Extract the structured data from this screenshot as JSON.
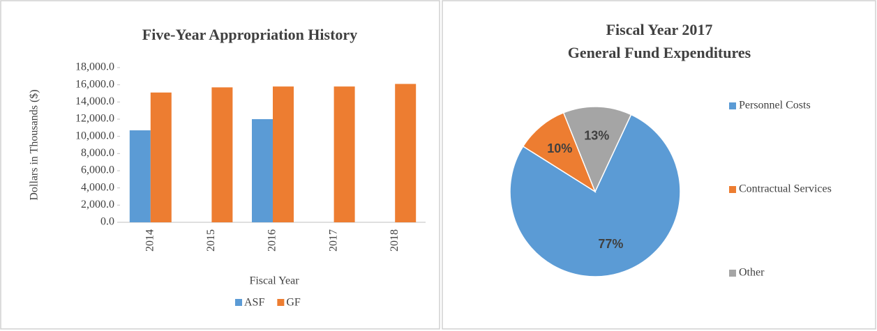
{
  "chart_data": [
    {
      "type": "bar",
      "title": "Five-Year Appropriation  History",
      "x_label": "Fiscal Year",
      "y_label": "Dollars in Thousands  ($)",
      "categories": [
        "2014",
        "2015",
        "2016",
        "2017",
        "2018"
      ],
      "series": [
        {
          "name": "ASF",
          "color": "#5b9bd5",
          "values": [
            10700,
            null,
            12000,
            null,
            null
          ]
        },
        {
          "name": "GF",
          "color": "#ed7d31",
          "values": [
            15100,
            15700,
            15800,
            15800,
            16100
          ]
        }
      ],
      "ylim": [
        0,
        18000
      ],
      "yticks": [
        {
          "value": 0,
          "label": "0.0"
        },
        {
          "value": 2000,
          "label": "2,000.0"
        },
        {
          "value": 4000,
          "label": "4,000.0"
        },
        {
          "value": 6000,
          "label": "6,000.0"
        },
        {
          "value": 8000,
          "label": "8,000.0"
        },
        {
          "value": 10000,
          "label": "10,000.0"
        },
        {
          "value": 12000,
          "label": "12,000.0"
        },
        {
          "value": 14000,
          "label": "14,000.0"
        },
        {
          "value": 16000,
          "label": "16,000.0"
        },
        {
          "value": 18000,
          "label": "18,000.0"
        }
      ],
      "grid": false,
      "legend": "bottom"
    },
    {
      "type": "pie",
      "title": [
        "Fiscal Year 2017",
        "General Fund Expenditures"
      ],
      "categories": [
        "Personnel Costs",
        "Contractual  Services",
        "Other"
      ],
      "values": [
        77,
        10,
        13
      ],
      "value_labels": [
        "77%",
        "10%",
        "13%"
      ],
      "colors": [
        "#5b9bd5",
        "#ed7d31",
        "#a5a5a5"
      ],
      "legend": "right"
    }
  ]
}
